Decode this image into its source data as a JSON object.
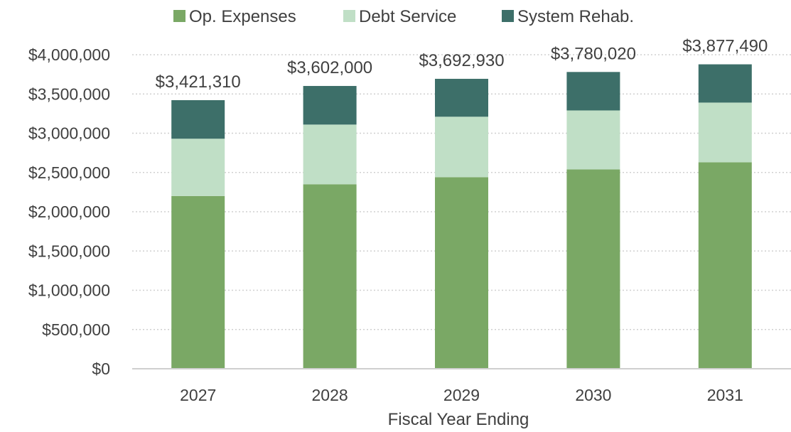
{
  "chart_data": {
    "type": "bar",
    "stacked": true,
    "title": "",
    "xlabel": "Fiscal Year Ending",
    "ylabel": "",
    "categories": [
      "2027",
      "2028",
      "2029",
      "2030",
      "2031"
    ],
    "ylim": [
      0,
      4000000
    ],
    "yticks": [
      0,
      500000,
      1000000,
      1500000,
      2000000,
      2500000,
      3000000,
      3500000,
      4000000
    ],
    "ytick_labels": [
      "$0",
      "$500,000",
      "$1,000,000",
      "$1,500,000",
      "$2,000,000",
      "$2,500,000",
      "$3,000,000",
      "$3,500,000",
      "$4,000,000"
    ],
    "grid": true,
    "legend_position": "top",
    "series": [
      {
        "name": "Op. Expenses",
        "color": "#7aa865",
        "values": [
          2200000,
          2350000,
          2440000,
          2540000,
          2630000
        ]
      },
      {
        "name": "Debt Service",
        "color": "#c0dfc6",
        "values": [
          730000,
          760000,
          770000,
          750000,
          760000
        ]
      },
      {
        "name": "System Rehab.",
        "color": "#3d6f69",
        "values": [
          491310,
          492000,
          482930,
          490020,
          487490
        ]
      }
    ],
    "totals": [
      3421310,
      3602000,
      3692930,
      3780020,
      3877490
    ],
    "total_labels": [
      "$3,421,310",
      "$3,602,000",
      "$3,692,930",
      "$3,780,020",
      "$3,877,490"
    ]
  }
}
